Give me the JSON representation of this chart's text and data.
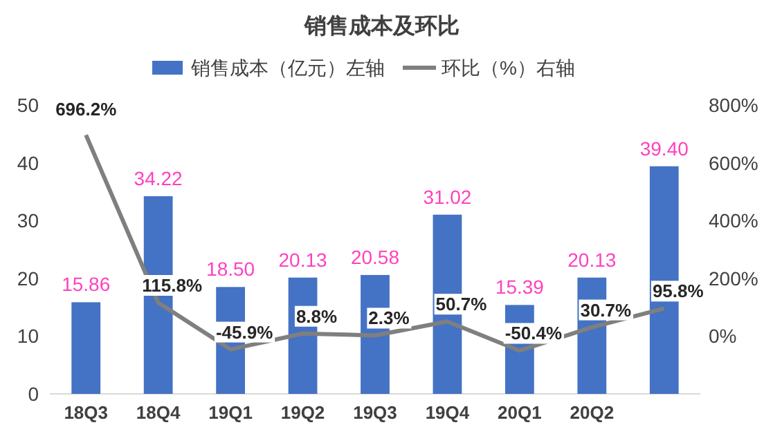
{
  "chart_data": {
    "type": "bar",
    "title": "销售成本及环比",
    "categories": [
      "18Q3",
      "18Q4",
      "19Q1",
      "19Q2",
      "19Q3",
      "19Q4",
      "20Q1",
      "20Q2",
      null
    ],
    "series": [
      {
        "name": "销售成本（亿元）左轴",
        "type": "bar",
        "color": "#4472c4",
        "values": [
          15.86,
          34.22,
          18.5,
          20.13,
          20.58,
          31.02,
          15.39,
          20.13,
          39.4
        ],
        "value_labels": [
          "15.86",
          "34.22",
          "18.50",
          "20.13",
          "20.58",
          "31.02",
          "15.39",
          "20.13",
          "39.40"
        ]
      },
      {
        "name": "环比（%）右轴",
        "type": "line",
        "axis": "y2",
        "color": "#7f7f7f",
        "values": [
          696.2,
          115.8,
          -45.9,
          8.8,
          2.3,
          50.7,
          -50.4,
          30.7,
          95.8
        ],
        "value_labels": [
          "696.2%",
          "115.8%",
          "-45.9%",
          "8.8%",
          "2.3%",
          "50.7%",
          "-50.4%",
          "30.7%",
          "95.8%"
        ]
      }
    ],
    "ylim": [
      0,
      50
    ],
    "yticks": [
      0,
      10,
      20,
      30,
      40,
      50
    ],
    "y2lim": [
      -200,
      800
    ],
    "y2ticks": [
      {
        "value": 0,
        "label": "0%"
      },
      {
        "value": 200,
        "label": "200%"
      },
      {
        "value": 400,
        "label": "400%"
      },
      {
        "value": 600,
        "label": "600%"
      },
      {
        "value": 800,
        "label": "800%"
      }
    ],
    "legend": "top",
    "grid": false
  }
}
